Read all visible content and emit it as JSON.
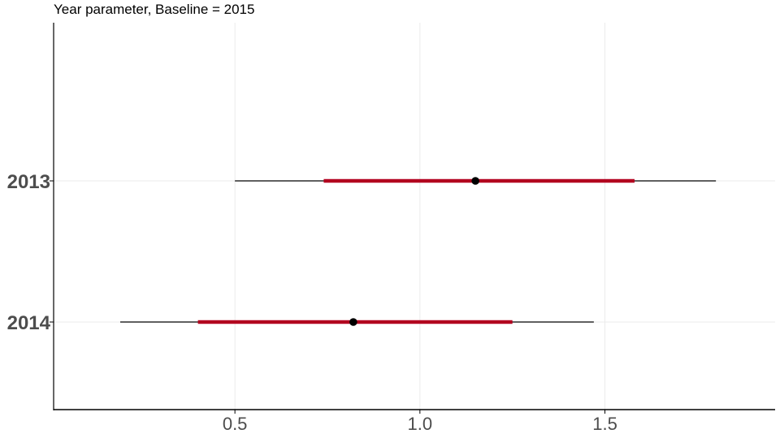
{
  "chart_data": {
    "type": "forest",
    "title": "Year parameter, Baseline = 2015",
    "xlabel": "",
    "ylabel": "",
    "xlim": [
      0.01,
      1.96
    ],
    "x_ticks": [
      0.5,
      1.0,
      1.5
    ],
    "x_tick_labels": [
      "0.5",
      "1.0",
      "1.5"
    ],
    "categories": [
      "2013",
      "2014"
    ],
    "series": [
      {
        "category": "2013",
        "estimate": 1.15,
        "inner_interval": [
          0.74,
          1.58
        ],
        "outer_interval": [
          0.5,
          1.8
        ]
      },
      {
        "category": "2014",
        "estimate": 0.82,
        "inner_interval": [
          0.4,
          1.25
        ],
        "outer_interval": [
          0.19,
          1.47
        ]
      }
    ],
    "grid": true,
    "colors": {
      "inner_interval": "#b2001f",
      "outer_interval": "#000000",
      "estimate_point": "#000000",
      "grid": "#ebebeb",
      "axis": "#000000",
      "tick_text": "#4d4d4d"
    }
  }
}
